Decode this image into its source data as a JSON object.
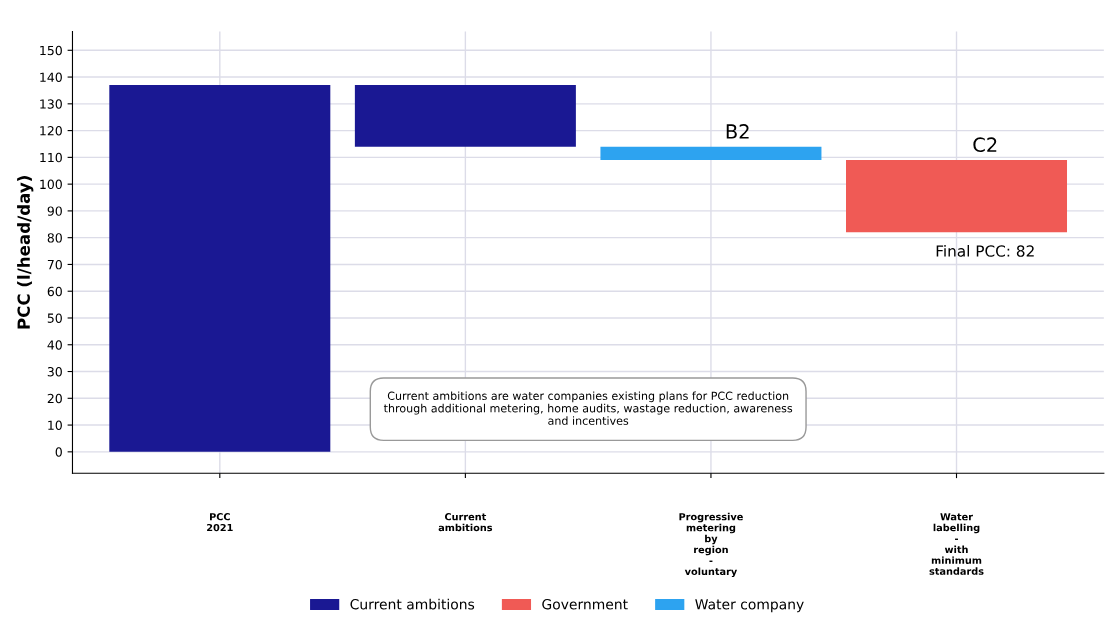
{
  "chart_data": {
    "type": "bar",
    "ylabel": "PCC (l/head/day)",
    "categories": [
      "PCC\n2021",
      "Current\nambitions",
      "Progressive\nmetering\nby\nregion\n-\nvoluntary",
      "Water\nlabelling\n-\nwith\nminimum\nstandards"
    ],
    "series": [
      {
        "name": "Current ambitions",
        "color": "#1a1893",
        "values": [
          137,
          23,
          null,
          null
        ],
        "base": [
          0,
          114,
          null,
          null
        ]
      },
      {
        "name": "Government",
        "color": "#f05a55",
        "values": [
          null,
          null,
          null,
          27
        ],
        "base": [
          null,
          null,
          null,
          82
        ]
      },
      {
        "name": "Water company",
        "color": "#2da3f0",
        "values": [
          null,
          null,
          5,
          null
        ],
        "base": [
          null,
          null,
          109,
          null
        ]
      }
    ],
    "ylim": [
      -8,
      157
    ],
    "yticks": [
      0,
      10,
      20,
      30,
      40,
      50,
      60,
      70,
      80,
      90,
      100,
      110,
      120,
      130,
      140,
      150
    ],
    "grid": true,
    "legend": "bottom",
    "annotations": [
      "B2",
      "C2",
      "Final PCC: 82",
      "Current ambitions are water companies existing plans for PCC reduction\nthrough additional metering, home audits, wastage reduction, awareness\nand incentives"
    ]
  }
}
